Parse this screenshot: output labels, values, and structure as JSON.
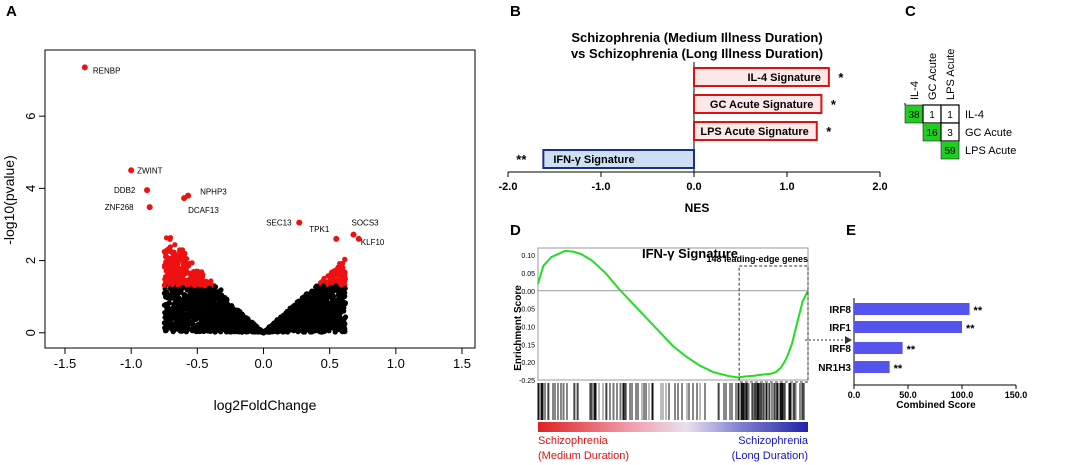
{
  "panels": {
    "a": "A",
    "b": "B",
    "c": "C",
    "d": "D",
    "e": "E"
  },
  "chart_data": [
    {
      "id": "volcano",
      "type": "scatter",
      "title": "",
      "xlabel": "log2FoldChange",
      "ylabel": "-log10(pvalue)",
      "xlim": [
        -1.5,
        1.5
      ],
      "ylim": [
        -0.2,
        7.5
      ],
      "xticks": [
        "-1.5",
        "-1.0",
        "-0.5",
        "0.0",
        "0.5",
        "1.0",
        "1.5"
      ],
      "xtick_values": [
        -1.5,
        -1.0,
        -0.5,
        0.0,
        0.5,
        1.0,
        1.5
      ],
      "yticks": [
        "0",
        "2",
        "4",
        "6"
      ],
      "ytick_values": [
        0,
        2,
        4,
        6
      ],
      "significance_threshold": 1.3,
      "colors": {
        "significant": "#ee1111",
        "nonsignificant": "#000000"
      },
      "labeled_points": [
        {
          "gene": "RENBP",
          "x": -1.35,
          "y": 7.35
        },
        {
          "gene": "ZWINT",
          "x": -1.0,
          "y": 4.5
        },
        {
          "gene": "DDB2",
          "x": -0.88,
          "y": 3.95
        },
        {
          "gene": "ZNF268",
          "x": -0.86,
          "y": 3.48
        },
        {
          "gene": "NPHP3",
          "x": -0.57,
          "y": 3.8
        },
        {
          "gene": "DCAF13",
          "x": -0.6,
          "y": 3.73
        },
        {
          "gene": "SEC13",
          "x": 0.27,
          "y": 3.05
        },
        {
          "gene": "TPK1",
          "x": 0.55,
          "y": 2.6
        },
        {
          "gene": "SOCS3",
          "x": 0.68,
          "y": 2.72
        },
        {
          "gene": "KLF10",
          "x": 0.72,
          "y": 2.6
        }
      ]
    },
    {
      "id": "nes",
      "type": "bar",
      "orientation": "horizontal",
      "title": "Schizophrenia (Medium Illness Duration)",
      "subtitle": "vs Schizophrenia (Long Illness Duration)",
      "xlabel": "NES",
      "xlim": [
        -2.0,
        2.0
      ],
      "xticks": [
        "-2.0",
        "-1.0",
        "0.0",
        "1.0",
        "2.0"
      ],
      "xtick_values": [
        -2.0,
        -1.0,
        0.0,
        1.0,
        2.0
      ],
      "categories": [
        "IL-4 Signature",
        "GC Acute Signature",
        "LPS Acute Signature",
        "IFN-γ Signature"
      ],
      "values": [
        1.45,
        1.37,
        1.32,
        -1.62
      ],
      "significance": [
        "*",
        "*",
        "*",
        "**"
      ],
      "colors": {
        "positive_fill": "#fde8e8",
        "positive_border": "#d11",
        "negative_fill": "#cfe0f5",
        "negative_border": "#1a2e8c"
      }
    },
    {
      "id": "overlap",
      "type": "table",
      "columns": [
        "IL-4",
        "GC Acute",
        "LPS Acute"
      ],
      "rows": [
        "IL-4",
        "GC Acute",
        "LPS Acute"
      ],
      "cells": [
        {
          "row": 0,
          "col": 0,
          "value": "38",
          "highlight": true
        },
        {
          "row": 0,
          "col": 1,
          "value": "1",
          "highlight": false
        },
        {
          "row": 0,
          "col": 2,
          "value": "1",
          "highlight": false
        },
        {
          "row": 1,
          "col": 1,
          "value": "16",
          "highlight": true
        },
        {
          "row": 1,
          "col": 2,
          "value": "3",
          "highlight": false
        },
        {
          "row": 2,
          "col": 2,
          "value": "59",
          "highlight": true
        }
      ],
      "colors": {
        "highlight": "#22cc22"
      }
    },
    {
      "id": "gsea",
      "type": "line",
      "title": "IFN-γ Signature",
      "ylabel": "Enrichment Score",
      "ylim": [
        -0.25,
        0.12
      ],
      "yticks": [
        "0.10",
        "0.05",
        "0.00",
        "-0.05",
        "-0.10",
        "-0.15",
        "-0.20",
        "-0.25"
      ],
      "ytick_values": [
        0.1,
        0.05,
        0.0,
        -0.05,
        -0.1,
        -0.15,
        -0.2,
        -0.25
      ],
      "x": [
        0,
        0.02,
        0.05,
        0.08,
        0.1,
        0.13,
        0.16,
        0.2,
        0.25,
        0.3,
        0.35,
        0.4,
        0.45,
        0.5,
        0.55,
        0.6,
        0.65,
        0.7,
        0.74,
        0.77,
        0.8,
        0.83,
        0.86,
        0.88,
        0.9,
        0.92,
        0.94,
        0.96,
        0.98,
        1.0
      ],
      "y": [
        0.02,
        0.07,
        0.095,
        0.105,
        0.112,
        0.11,
        0.103,
        0.085,
        0.05,
        0.005,
        -0.035,
        -0.075,
        -0.115,
        -0.155,
        -0.185,
        -0.21,
        -0.228,
        -0.238,
        -0.243,
        -0.24,
        -0.238,
        -0.235,
        -0.233,
        -0.228,
        -0.215,
        -0.19,
        -0.15,
        -0.09,
        -0.03,
        0.0
      ],
      "leading_edge_label": "148 leading-edge genes",
      "leading_edge_start": 0.745,
      "barcode_label_left": [
        "Schizophrenia",
        "(Medium Duration)"
      ],
      "barcode_label_right": [
        "Schizophrenia",
        "(Long Duration)"
      ],
      "colors": {
        "line": "#22dd22",
        "left_label": "#dd1111",
        "right_label": "#1111cc"
      }
    },
    {
      "id": "tf",
      "type": "bar",
      "orientation": "horizontal",
      "xlabel": "Combined Score",
      "xlim": [
        0,
        150
      ],
      "xticks": [
        "0.0",
        "50.0",
        "100.0",
        "150.0"
      ],
      "xtick_values": [
        0,
        50,
        100,
        150
      ],
      "categories": [
        "IRF8",
        "IRF1",
        "IRF8",
        "NR1H3"
      ],
      "values": [
        107,
        100,
        45,
        33
      ],
      "significance": [
        "**",
        "**",
        "**",
        "**"
      ],
      "colors": {
        "bar": "#5555ee"
      }
    }
  ]
}
